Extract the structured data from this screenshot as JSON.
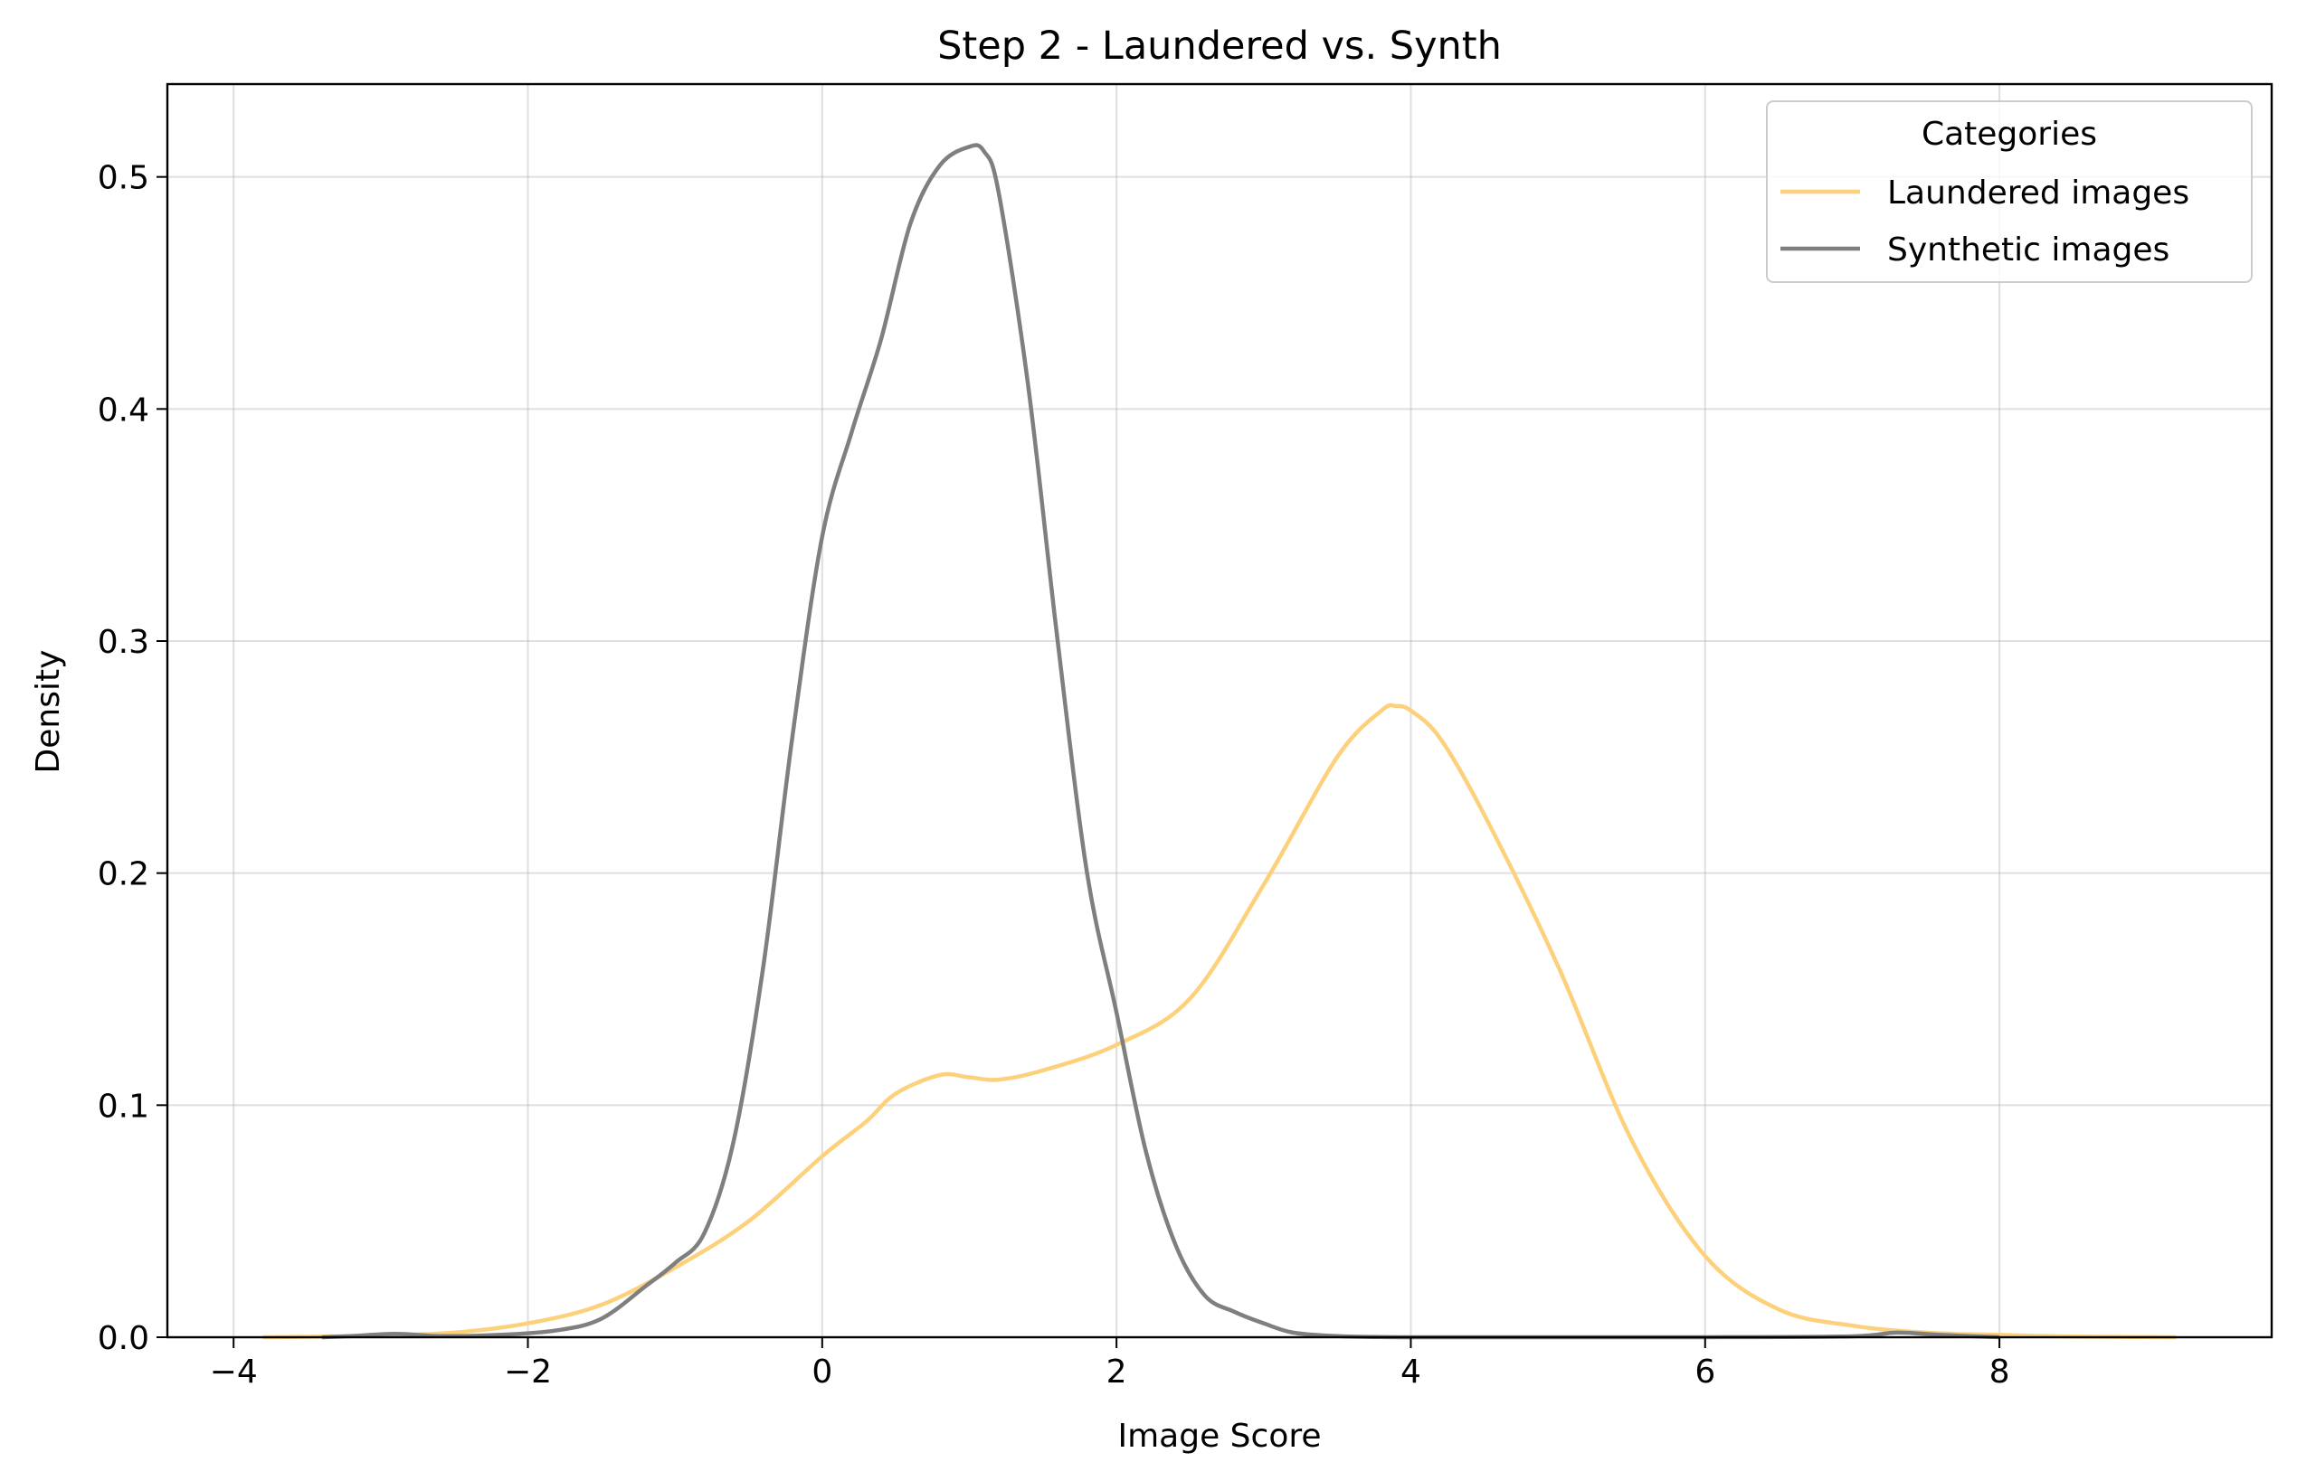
{
  "chart_data": {
    "type": "line",
    "title": "Step 2 - Laundered vs. Synth",
    "xlabel": "Image Score",
    "ylabel": "Density",
    "xlim": [
      -4.45,
      9.85
    ],
    "ylim": [
      0,
      0.54
    ],
    "xticks": [
      -4,
      -2,
      0,
      2,
      4,
      6,
      8
    ],
    "xtick_labels": [
      "−4",
      "−2",
      "0",
      "2",
      "4",
      "6",
      "8"
    ],
    "yticks": [
      0.0,
      0.1,
      0.2,
      0.3,
      0.4,
      0.5
    ],
    "ytick_labels": [
      "0.0",
      "0.1",
      "0.2",
      "0.3",
      "0.4",
      "0.5"
    ],
    "grid": true,
    "legend": {
      "title": "Categories",
      "placement": "top-right"
    },
    "series": [
      {
        "name": "Laundered images",
        "color": "#fdd17c",
        "x": [
          -3.8,
          -3.5,
          -3.0,
          -2.5,
          -2.0,
          -1.5,
          -1.0,
          -0.5,
          0.0,
          0.3,
          0.5,
          0.8,
          1.0,
          1.2,
          1.5,
          2.0,
          2.5,
          3.0,
          3.5,
          3.8,
          3.9,
          4.0,
          4.2,
          4.5,
          5.0,
          5.5,
          6.0,
          6.5,
          7.0,
          7.5,
          8.0,
          8.5,
          9.2
        ],
        "y": [
          0.0,
          0.0002,
          0.0008,
          0.002,
          0.006,
          0.014,
          0.03,
          0.05,
          0.078,
          0.093,
          0.105,
          0.113,
          0.112,
          0.111,
          0.115,
          0.126,
          0.146,
          0.195,
          0.25,
          0.27,
          0.272,
          0.27,
          0.258,
          0.225,
          0.16,
          0.085,
          0.035,
          0.012,
          0.005,
          0.002,
          0.001,
          0.0003,
          0.0
        ]
      },
      {
        "name": "Synthetic images",
        "color": "#7f7f7f",
        "x": [
          -3.4,
          -3.2,
          -2.9,
          -2.6,
          -2.2,
          -1.8,
          -1.5,
          -1.2,
          -1.0,
          -0.8,
          -0.6,
          -0.4,
          -0.2,
          0.0,
          0.2,
          0.4,
          0.6,
          0.8,
          1.0,
          1.1,
          1.2,
          1.4,
          1.6,
          1.8,
          2.0,
          2.2,
          2.4,
          2.6,
          2.8,
          3.0,
          3.2,
          3.5,
          4.0,
          5.0,
          6.0,
          7.0,
          7.3,
          7.6,
          8.0
        ],
        "y": [
          0.0,
          0.0005,
          0.0015,
          0.0005,
          0.001,
          0.003,
          0.008,
          0.022,
          0.032,
          0.045,
          0.085,
          0.16,
          0.26,
          0.345,
          0.39,
          0.43,
          0.48,
          0.505,
          0.513,
          0.511,
          0.493,
          0.41,
          0.3,
          0.2,
          0.14,
          0.08,
          0.04,
          0.018,
          0.011,
          0.006,
          0.002,
          0.0005,
          0.0,
          0.0,
          0.0,
          0.0004,
          0.002,
          0.001,
          0.0
        ]
      }
    ]
  }
}
